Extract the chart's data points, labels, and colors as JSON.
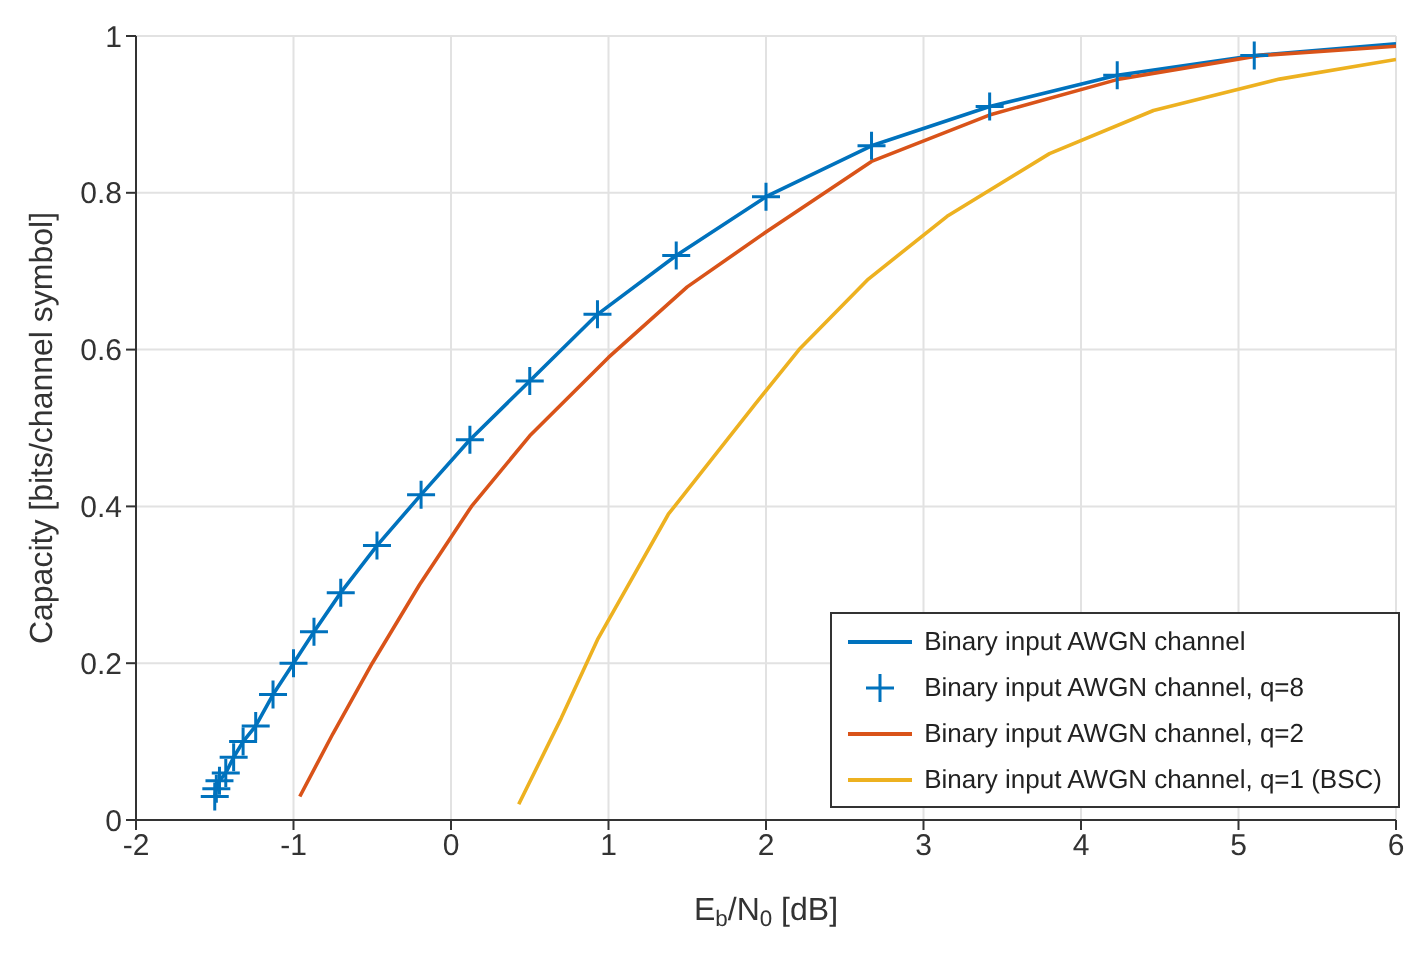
{
  "chart_data": {
    "type": "line",
    "xlabel": "E$_{b}$/N$_{0}$ [dB]",
    "ylabel": "Capacity [bits/channel symbol]",
    "xlim": [
      -2,
      6
    ],
    "xticks": [
      -2,
      -1,
      0,
      1,
      2,
      3,
      4,
      5,
      6
    ],
    "ylim": [
      0,
      1
    ],
    "yticks": [
      0,
      0.2,
      0.4,
      0.6,
      0.8,
      1
    ],
    "grid": true,
    "legend": "bottom right",
    "series": [
      {
        "name": "Binary input AWGN channel",
        "color": "#0072bd",
        "x": [
          -1.5,
          -1.49,
          -1.47,
          -1.43,
          -1.38,
          -1.32,
          -1.24,
          -1.13,
          -1.0,
          -0.87,
          -0.7,
          -0.47,
          -0.19,
          0.12,
          0.5,
          0.93,
          1.43,
          2.0,
          2.67,
          3.42,
          4.23,
          5.1,
          6
        ],
        "values": [
          0.03,
          0.04,
          0.05,
          0.06,
          0.08,
          0.1,
          0.12,
          0.16,
          0.2,
          0.24,
          0.29,
          0.35,
          0.415,
          0.485,
          0.56,
          0.645,
          0.72,
          0.795,
          0.86,
          0.91,
          0.95,
          0.975,
          0.99
        ]
      },
      {
        "name": "Binary input AWGN channel, q=8",
        "type": "scatter",
        "marker": "cross",
        "color": "#0072bd",
        "x": [
          -1.5,
          -1.49,
          -1.47,
          -1.43,
          -1.38,
          -1.32,
          -1.24,
          -1.13,
          -1.0,
          -0.87,
          -0.7,
          -0.47,
          -0.19,
          0.12,
          0.5,
          0.93,
          1.43,
          2.0,
          2.67,
          3.42,
          4.23,
          5.1
        ],
        "values": [
          0.03,
          0.04,
          0.05,
          0.06,
          0.08,
          0.1,
          0.12,
          0.16,
          0.2,
          0.24,
          0.29,
          0.35,
          0.415,
          0.485,
          0.56,
          0.645,
          0.72,
          0.795,
          0.86,
          0.91,
          0.95,
          0.975
        ]
      },
      {
        "name": "Binary input AWGN channel, q=2",
        "color": "#d95319",
        "x": [
          -0.96,
          -0.75,
          -0.5,
          -0.2,
          0.13,
          0.5,
          1.0,
          1.5,
          2.0,
          2.67,
          3.43,
          4.24,
          5.13,
          6
        ],
        "values": [
          0.03,
          0.11,
          0.2,
          0.3,
          0.4,
          0.49,
          0.59,
          0.68,
          0.75,
          0.84,
          0.9,
          0.945,
          0.975,
          0.987
        ]
      },
      {
        "name": "Binary input AWGN channel, q=1 (BSC)",
        "color": "#edb120",
        "x": [
          0.43,
          0.7,
          0.93,
          1.38,
          1.93,
          2.21,
          2.65,
          3.15,
          3.8,
          4.46,
          5.26,
          6
        ],
        "values": [
          0.02,
          0.13,
          0.23,
          0.39,
          0.53,
          0.6,
          0.69,
          0.77,
          0.85,
          0.905,
          0.945,
          0.97
        ]
      }
    ]
  }
}
